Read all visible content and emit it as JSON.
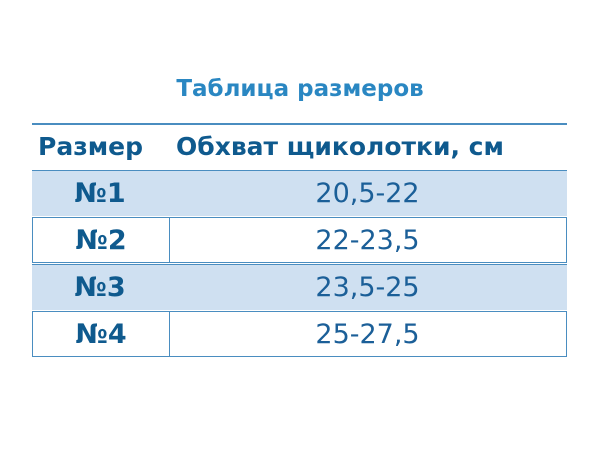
{
  "title": "Таблица размеров",
  "header": {
    "size": "Размер",
    "girth": "Обхват щиколотки, см"
  },
  "rows": [
    {
      "size": "№1",
      "girth": "20,5-22"
    },
    {
      "size": "№2",
      "girth": "22-23,5"
    },
    {
      "size": "№3",
      "girth": "23,5-25"
    },
    {
      "size": "№4",
      "girth": "25-27,5"
    }
  ],
  "colors": {
    "title": "#2a87c2",
    "text": "#0f5a8e",
    "shade": "#cfe0f1",
    "border": "#4a8dc0"
  }
}
